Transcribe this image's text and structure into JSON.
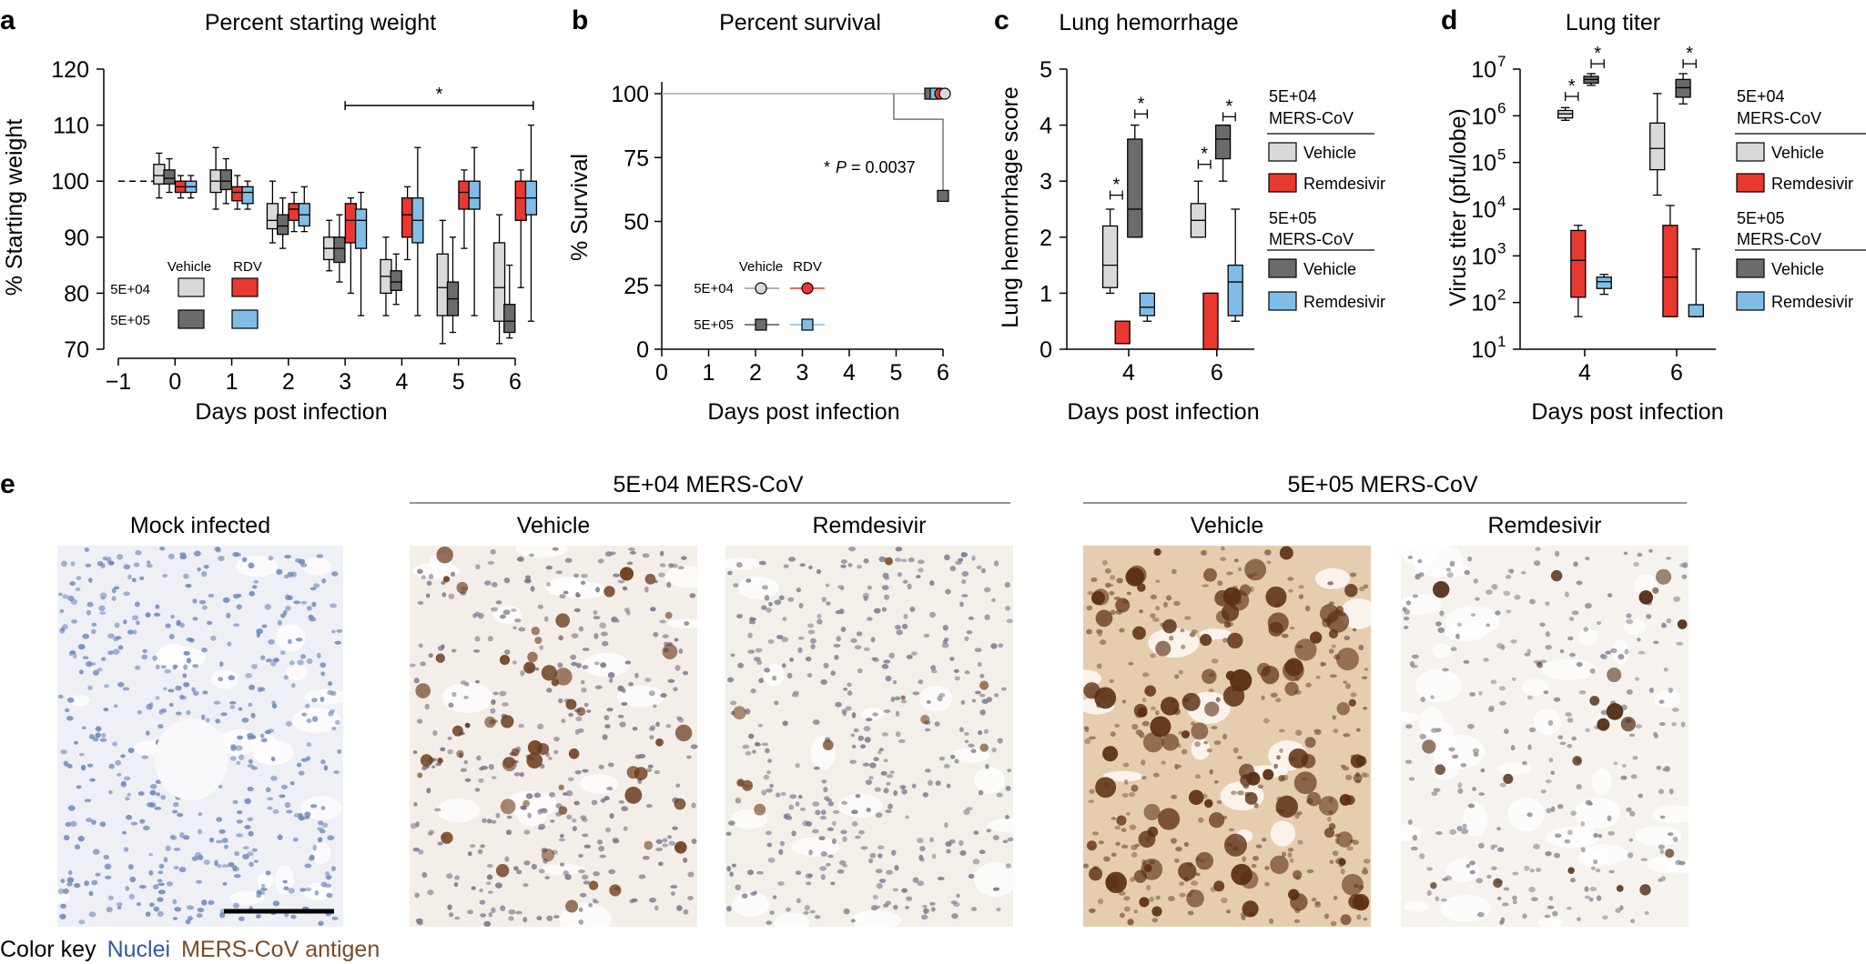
{
  "colors": {
    "vehicle_lo": "#d9d9d9",
    "vehicle_hi": "#6b6b6b",
    "rdv_lo": "#e8382f",
    "rdv_hi": "#7fbde6",
    "nuclei": "#2e5aa8",
    "antigen": "#7a4a26"
  },
  "panel_a": {
    "letter": "a",
    "title": "Percent starting weight",
    "xlabel": "Days post infection",
    "ylabel": "% Starting weight",
    "legend": {
      "vehicle": "Vehicle",
      "rdv": "RDV",
      "row1": "5E+04",
      "row2": "5E+05"
    },
    "sig": "*"
  },
  "panel_b": {
    "letter": "b",
    "title": "Percent survival",
    "xlabel": "Days post infection",
    "ylabel": "% Survival",
    "pvalue_star": "*",
    "pvalue_p": "P",
    "pvalue_rest": " = 0.0037",
    "legend": {
      "vehicle": "Vehicle",
      "rdv": "RDV",
      "row1": "5E+04",
      "row2": "5E+05"
    }
  },
  "panel_c": {
    "letter": "c",
    "title": "Lung hemorrhage",
    "xlabel": "Days post infection",
    "ylabel": "Lung hemorrhage score",
    "sig": "*",
    "legend": {
      "group1_a": "5E+04",
      "group1_b": "MERS-CoV",
      "group2_a": "5E+05",
      "group2_b": "MERS-CoV",
      "vehicle": "Vehicle",
      "remdesivir": "Remdesivir"
    }
  },
  "panel_d": {
    "letter": "d",
    "title": "Lung titer",
    "xlabel": "Days post infection",
    "ylabel": "Virus titer (pfu/lobe)",
    "sig": "*",
    "legend": {
      "group1_a": "5E+04",
      "group1_b": "MERS-CoV",
      "group2_a": "5E+05",
      "group2_b": "MERS-CoV",
      "vehicle": "Vehicle",
      "remdesivir": "Remdesivir"
    }
  },
  "panel_e": {
    "letter": "e",
    "mock_title": "Mock infected",
    "group1_title": "5E+04 MERS-CoV",
    "group2_title": "5E+05 MERS-CoV",
    "vehicle": "Vehicle",
    "remdesivir": "Remdesivir",
    "key_label": "Color key",
    "key_nuclei": "Nuclei",
    "key_antigen": "MERS-CoV antigen"
  },
  "chart_data": [
    {
      "type": "box",
      "panel": "a",
      "title": "Percent starting weight",
      "xlabel": "Days post infection",
      "ylabel": "% Starting weight",
      "xlim": [
        -1,
        6
      ],
      "xticks": [
        -1,
        0,
        1,
        2,
        3,
        4,
        5,
        6
      ],
      "ylim": [
        70,
        120
      ],
      "yticks": [
        70,
        80,
        90,
        100,
        110,
        120
      ],
      "baseline": 100,
      "series": [
        {
          "name": "5E+04 Vehicle",
          "color": "#d9d9d9",
          "boxes": [
            {
              "day": 0,
              "min": 97,
              "q1": 99.5,
              "median": 101,
              "q3": 103,
              "max": 105
            },
            {
              "day": 1,
              "min": 95,
              "q1": 98,
              "median": 100,
              "q3": 102,
              "max": 106
            },
            {
              "day": 2,
              "min": 89,
              "q1": 91.5,
              "median": 93,
              "q3": 96,
              "max": 100
            },
            {
              "day": 3,
              "min": 84,
              "q1": 86,
              "median": 88,
              "q3": 90,
              "max": 93
            },
            {
              "day": 4,
              "min": 76,
              "q1": 80,
              "median": 83,
              "q3": 86,
              "max": 90
            },
            {
              "day": 5,
              "min": 71,
              "q1": 76,
              "median": 81,
              "q3": 87,
              "max": 93
            },
            {
              "day": 6,
              "min": 71,
              "q1": 75,
              "median": 81,
              "q3": 89,
              "max": 94
            }
          ]
        },
        {
          "name": "5E+05 Vehicle",
          "color": "#6b6b6b",
          "boxes": [
            {
              "day": 0,
              "min": 98,
              "q1": 99.5,
              "median": 100.5,
              "q3": 102,
              "max": 104
            },
            {
              "day": 1,
              "min": 96,
              "q1": 98.5,
              "median": 100,
              "q3": 102,
              "max": 104
            },
            {
              "day": 2,
              "min": 88,
              "q1": 90.5,
              "median": 92,
              "q3": 94,
              "max": 97
            },
            {
              "day": 3,
              "min": 82,
              "q1": 85.5,
              "median": 88,
              "q3": 90,
              "max": 94
            },
            {
              "day": 4,
              "min": 78,
              "q1": 80.5,
              "median": 82,
              "q3": 84,
              "max": 87
            },
            {
              "day": 5,
              "min": 73,
              "q1": 76,
              "median": 79,
              "q3": 82,
              "max": 90
            },
            {
              "day": 6,
              "min": 72,
              "q1": 73,
              "median": 75,
              "q3": 78,
              "max": 85
            }
          ]
        },
        {
          "name": "5E+04 RDV",
          "color": "#e8382f",
          "boxes": [
            {
              "day": 0,
              "min": 97,
              "q1": 98,
              "median": 99,
              "q3": 100,
              "max": 101
            },
            {
              "day": 1,
              "min": 95,
              "q1": 96.5,
              "median": 98,
              "q3": 99,
              "max": 101
            },
            {
              "day": 2,
              "min": 91,
              "q1": 93,
              "median": 95,
              "q3": 96,
              "max": 98
            },
            {
              "day": 3,
              "min": 80,
              "q1": 89,
              "median": 93,
              "q3": 96,
              "max": 97
            },
            {
              "day": 4,
              "min": 86,
              "q1": 90,
              "median": 94,
              "q3": 97,
              "max": 99
            },
            {
              "day": 5,
              "min": 88,
              "q1": 95,
              "median": 98,
              "q3": 100,
              "max": 102
            },
            {
              "day": 6,
              "min": 81,
              "q1": 93,
              "median": 97,
              "q3": 100,
              "max": 102
            }
          ]
        },
        {
          "name": "5E+05 RDV",
          "color": "#7fbde6",
          "boxes": [
            {
              "day": 0,
              "min": 97,
              "q1": 98,
              "median": 99,
              "q3": 100,
              "max": 101
            },
            {
              "day": 1,
              "min": 95,
              "q1": 96,
              "median": 98,
              "q3": 99,
              "max": 100
            },
            {
              "day": 2,
              "min": 91,
              "q1": 92,
              "median": 94,
              "q3": 96,
              "max": 99
            },
            {
              "day": 3,
              "min": 76,
              "q1": 88,
              "median": 93,
              "q3": 95,
              "max": 98
            },
            {
              "day": 4,
              "min": 76,
              "q1": 89,
              "median": 93,
              "q3": 97,
              "max": 106
            },
            {
              "day": 5,
              "min": 76,
              "q1": 95,
              "median": 97,
              "q3": 100,
              "max": 106
            },
            {
              "day": 6,
              "min": 75,
              "q1": 94,
              "median": 97,
              "q3": 100,
              "max": 110
            }
          ]
        }
      ],
      "significance": {
        "from_day": 3,
        "to_day": 6,
        "label": "*"
      }
    },
    {
      "type": "line",
      "panel": "b",
      "title": "Percent survival",
      "xlabel": "Days post infection",
      "ylabel": "% Survival",
      "xlim": [
        0,
        6
      ],
      "xticks": [
        0,
        1,
        2,
        3,
        4,
        5,
        6
      ],
      "ylim": [
        0,
        100
      ],
      "yticks": [
        0,
        25,
        50,
        75,
        100
      ],
      "series": [
        {
          "name": "5E+04 Vehicle",
          "color": "#d9d9d9",
          "x": [
            0,
            6
          ],
          "y": [
            100,
            100
          ]
        },
        {
          "name": "5E+04 RDV",
          "color": "#e8382f",
          "x": [
            0,
            6
          ],
          "y": [
            100,
            100
          ]
        },
        {
          "name": "5E+05 Vehicle",
          "color": "#6b6b6b",
          "x": [
            0,
            5,
            5,
            6
          ],
          "y": [
            100,
            100,
            90,
            60
          ]
        },
        {
          "name": "5E+05 RDV",
          "color": "#7fbde6",
          "x": [
            0,
            6
          ],
          "y": [
            100,
            100
          ]
        }
      ],
      "annotation": "* P = 0.0037"
    },
    {
      "type": "box",
      "panel": "c",
      "title": "Lung hemorrhage",
      "xlabel": "Days post infection",
      "ylabel": "Lung hemorrhage score",
      "categories": [
        4,
        6
      ],
      "ylim": [
        0,
        5
      ],
      "yticks": [
        0,
        1,
        2,
        3,
        4,
        5
      ],
      "series": [
        {
          "name": "5E+04 Vehicle",
          "color": "#d9d9d9",
          "boxes": [
            {
              "day": 4,
              "min": 1,
              "q1": 1.1,
              "median": 1.5,
              "q3": 2.2,
              "max": 2.5
            },
            {
              "day": 6,
              "min": 2,
              "q1": 2,
              "median": 2.3,
              "q3": 2.6,
              "max": 3
            }
          ]
        },
        {
          "name": "5E+04 Remdesivir",
          "color": "#e8382f",
          "boxes": [
            {
              "day": 4,
              "min": 0.1,
              "q1": 0.1,
              "median": 0.1,
              "q3": 0.5,
              "max": 0.5
            },
            {
              "day": 6,
              "min": 0,
              "q1": 0,
              "median": 0,
              "q3": 1,
              "max": 1
            }
          ]
        },
        {
          "name": "5E+05 Vehicle",
          "color": "#6b6b6b",
          "boxes": [
            {
              "day": 4,
              "min": 2,
              "q1": 2,
              "median": 2.5,
              "q3": 3.75,
              "max": 4
            },
            {
              "day": 6,
              "min": 3,
              "q1": 3.4,
              "median": 3.75,
              "q3": 4,
              "max": 4
            }
          ]
        },
        {
          "name": "5E+05 Remdesivir",
          "color": "#7fbde6",
          "boxes": [
            {
              "day": 4,
              "min": 0.5,
              "q1": 0.6,
              "median": 0.75,
              "q3": 1,
              "max": 1
            },
            {
              "day": 6,
              "min": 0.5,
              "q1": 0.6,
              "median": 1.2,
              "q3": 1.5,
              "max": 2.5
            }
          ]
        }
      ],
      "significance": [
        {
          "day": 4,
          "pair": "5E+04 Vehicle vs 5E+04 Remdesivir",
          "label": "*"
        },
        {
          "day": 4,
          "pair": "5E+05 Vehicle vs 5E+05 Remdesivir",
          "label": "*"
        },
        {
          "day": 6,
          "pair": "5E+04 Vehicle vs 5E+04 Remdesivir",
          "label": "*"
        },
        {
          "day": 6,
          "pair": "5E+05 Vehicle vs 5E+05 Remdesivir",
          "label": "*"
        }
      ]
    },
    {
      "type": "box",
      "panel": "d",
      "title": "Lung titer",
      "xlabel": "Days post infection",
      "ylabel": "Virus titer (pfu/lobe)",
      "categories": [
        4,
        6
      ],
      "yscale": "log",
      "ylim": [
        10,
        10000000
      ],
      "yticks": [
        10,
        100,
        1000,
        10000,
        100000,
        1000000,
        10000000
      ],
      "series": [
        {
          "name": "5E+04 Vehicle",
          "color": "#d9d9d9",
          "boxes": [
            {
              "day": 4,
              "min": 800000,
              "q1": 900000,
              "median": 1100000,
              "q3": 1300000,
              "max": 1500000
            },
            {
              "day": 6,
              "min": 20000,
              "q1": 70000,
              "median": 200000,
              "q3": 700000,
              "max": 3000000
            }
          ]
        },
        {
          "name": "5E+04 Remdesivir",
          "color": "#e8382f",
          "boxes": [
            {
              "day": 4,
              "min": 50,
              "q1": 130,
              "median": 800,
              "q3": 3500,
              "max": 4500
            },
            {
              "day": 6,
              "min": 50,
              "q1": 50,
              "median": 350,
              "q3": 4500,
              "max": 12000
            }
          ]
        },
        {
          "name": "5E+05 Vehicle",
          "color": "#6b6b6b",
          "boxes": [
            {
              "day": 4,
              "min": 4500000,
              "q1": 5000000,
              "median": 6000000,
              "q3": 7000000,
              "max": 8000000
            },
            {
              "day": 6,
              "min": 1800000,
              "q1": 2500000,
              "median": 4000000,
              "q3": 6000000,
              "max": 8000000
            }
          ]
        },
        {
          "name": "5E+05 Remdesivir",
          "color": "#7fbde6",
          "boxes": [
            {
              "day": 4,
              "min": 150,
              "q1": 200,
              "median": 280,
              "q3": 350,
              "max": 400
            },
            {
              "day": 6,
              "min": 50,
              "q1": 50,
              "median": 50,
              "q3": 90,
              "max": 1400
            }
          ]
        }
      ],
      "significance": [
        {
          "day": 4,
          "pair": "5E+04 Vehicle vs 5E+04 Remdesivir",
          "label": "*"
        },
        {
          "day": 4,
          "pair": "5E+05 Vehicle vs 5E+05 Remdesivir",
          "label": "*"
        },
        {
          "day": 6,
          "pair": "5E+05 Vehicle vs 5E+05 Remdesivir",
          "label": "*"
        }
      ]
    }
  ]
}
